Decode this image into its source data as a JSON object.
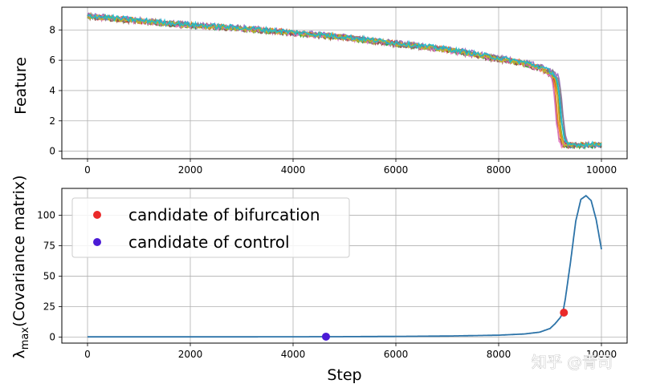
{
  "chart_data": [
    {
      "type": "line",
      "ylabel": "Feature",
      "xlim": [
        -500,
        10500
      ],
      "ylim": [
        -0.5,
        9.5
      ],
      "xticks": [
        0,
        2000,
        4000,
        6000,
        8000,
        10000
      ],
      "yticks": [
        0,
        2,
        4,
        6,
        8
      ],
      "grid": true,
      "series_count": 10,
      "series_colors": [
        "#1f77b4",
        "#ff7f0e",
        "#2ca02c",
        "#d62728",
        "#9467bd",
        "#8c564b",
        "#e377c2",
        "#7f7f7f",
        "#bcbd22",
        "#17becf"
      ],
      "mean_curve": {
        "x": [
          0,
          1000,
          2000,
          3000,
          4000,
          5000,
          6000,
          7000,
          8000,
          8500,
          8800,
          9000,
          9100,
          9150,
          9200,
          9250,
          9300,
          9400,
          9600,
          9800,
          10000
        ],
        "y": [
          8.9,
          8.6,
          8.3,
          8.1,
          7.8,
          7.5,
          7.1,
          6.7,
          6.1,
          5.8,
          5.5,
          5.2,
          4.9,
          4.0,
          2.0,
          0.8,
          0.4,
          0.4,
          0.4,
          0.4,
          0.4
        ]
      }
    },
    {
      "type": "line",
      "xlabel": "Step",
      "ylabel": "λ_max(Covariance matrix)",
      "xlim": [
        -500,
        10500
      ],
      "ylim": [
        -5,
        122
      ],
      "xticks": [
        0,
        2000,
        4000,
        6000,
        8000,
        10000
      ],
      "yticks": [
        0,
        25,
        50,
        75,
        100
      ],
      "grid": true,
      "line_color": "#2c73a8",
      "x": [
        0,
        2000,
        4000,
        5000,
        6000,
        7000,
        8000,
        8500,
        8800,
        9000,
        9100,
        9200,
        9250,
        9300,
        9400,
        9500,
        9600,
        9700,
        9800,
        9900,
        10000
      ],
      "y": [
        0.1,
        0.1,
        0.2,
        0.3,
        0.5,
        0.8,
        1.5,
        2.5,
        4.0,
        7.0,
        11.0,
        16.0,
        20.0,
        32.0,
        62.0,
        95.0,
        113.0,
        116.0,
        112.0,
        96.0,
        72.0
      ],
      "markers": [
        {
          "label": "candidate of bifurcation",
          "color": "#ea2a2a",
          "x": 9270,
          "y": 20
        },
        {
          "label": "candidate of control",
          "color": "#4b1bd6",
          "x": 4640,
          "y": 0.3
        }
      ],
      "legend_placement": "upper-left"
    }
  ],
  "watermark": "知乎 @青司"
}
